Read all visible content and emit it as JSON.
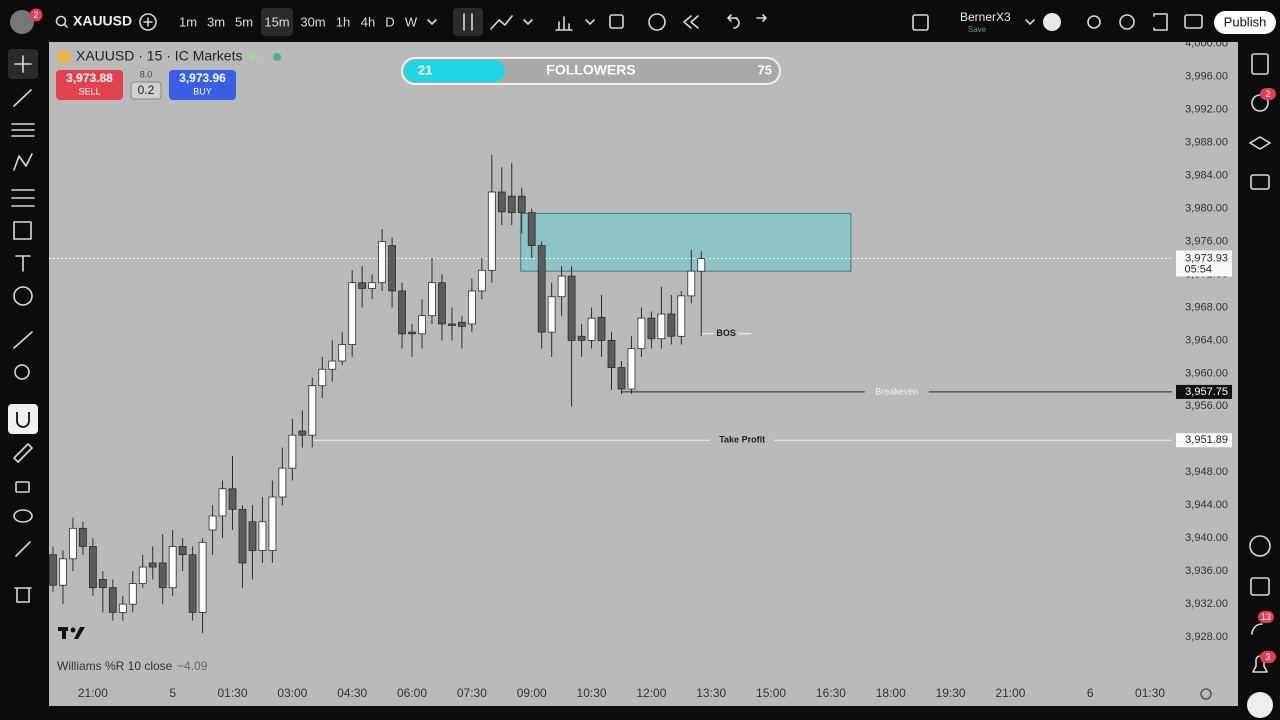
{
  "top_bar": {
    "avatar_badge": "2",
    "symbol": "XAUUSD",
    "timeframes": [
      "1m",
      "3m",
      "5m",
      "15m",
      "30m",
      "1h",
      "4h",
      "D",
      "W"
    ],
    "active_timeframe": "15m",
    "user": "BernerX3",
    "user_status": "Save",
    "publish": "Publish"
  },
  "symbol_info": {
    "title": "XAUUSD · 15 · IC Markets",
    "sell_price": "3,973.88",
    "sell_label": "SELL",
    "spread": "8.0",
    "quantity": "0.2",
    "buy_price": "3,973.96",
    "buy_label": "BUY"
  },
  "followers_widget": {
    "left": "21",
    "label": "FOLLOWERS",
    "right": "75"
  },
  "right_sidebar": {
    "badges": [
      "2",
      "13",
      "3"
    ]
  },
  "chart_data": {
    "type": "candlestick",
    "x": [
      -4,
      -3,
      -2,
      -1,
      0,
      1,
      2,
      3,
      4,
      5,
      6,
      7,
      8,
      9,
      10,
      11,
      12,
      13,
      14,
      15,
      16,
      17,
      18,
      19,
      20,
      21,
      22,
      23,
      24,
      25,
      26,
      27,
      28,
      29,
      30,
      31,
      32,
      33,
      34,
      35,
      36,
      37,
      38,
      39,
      40,
      41,
      42,
      43,
      44,
      45,
      46,
      47,
      48,
      49,
      50,
      51,
      52,
      53,
      54,
      55,
      56,
      57,
      58,
      59,
      60,
      61
    ],
    "open": [
      3938,
      3934.3,
      3937.5,
      3941.2,
      3939,
      3935,
      3934,
      3931,
      3932,
      3934.5,
      3937,
      3937,
      3934,
      3939,
      3938,
      3931,
      3941,
      3942.7,
      3946,
      3943.5,
      3942,
      3938.5,
      3938.5,
      3945,
      3948.5,
      3953,
      3952.5,
      3958.5,
      3960.5,
      3961.5,
      3963.5,
      3971,
      3970.3,
      3971,
      3975.5,
      3970,
      3965,
      3964.8,
      3967,
      3971,
      3966,
      3966.2,
      3966,
      3970,
      3972.5,
      3982,
      3981.5,
      3981.5,
      3979.5,
      3975.5,
      3965,
      3969.3,
      3971.8,
      3964.5,
      3964,
      3966.8,
      3964,
      3960.7,
      3958.1,
      3963,
      3966.7,
      3964.2,
      3967.2,
      3964.5,
      3969.4,
      3972.4
    ],
    "high": [
      3939,
      3938.5,
      3942.5,
      3942,
      3940,
      3936,
      3935,
      3933,
      3936,
      3938,
      3939,
      3940.5,
      3941,
      3940,
      3939,
      3940,
      3944,
      3947,
      3950,
      3944,
      3944,
      3945,
      3947,
      3951,
      3954.5,
      3955.5,
      3959.5,
      3962,
      3964,
      3965,
      3972.5,
      3973,
      3972,
      3977.5,
      3976.5,
      3971,
      3966,
      3969,
      3974,
      3972,
      3968,
      3967,
      3971.5,
      3974,
      3986.5,
      3985,
      3985.5,
      3982.5,
      3980,
      3976,
      3971,
      3973,
      3973,
      3966,
      3968,
      3969.5,
      3965,
      3961.5,
      3964.5,
      3968,
      3967.5,
      3970.5,
      3969.5,
      3970,
      3975,
      3974.8
    ],
    "low": [
      3933.5,
      3932,
      3936,
      3938,
      3933,
      3931,
      3930,
      3930,
      3931,
      3934,
      3935,
      3932,
      3933,
      3936,
      3930,
      3928.5,
      3938,
      3940,
      3941,
      3934,
      3935,
      3937,
      3937,
      3944,
      3947,
      3951,
      3951,
      3957,
      3959,
      3961,
      3962,
      3968,
      3969,
      3970,
      3968,
      3963,
      3962,
      3963,
      3966,
      3964,
      3964,
      3963,
      3965,
      3969,
      3971,
      3978,
      3978,
      3977,
      3974,
      3963,
      3962,
      3967,
      3956,
      3962,
      3963,
      3962,
      3958,
      3957.5,
      3957.5,
      3962,
      3963,
      3963,
      3963.5,
      3963.5,
      3968.5,
      3964.5
    ],
    "close": [
      3934.3,
      3937.5,
      3941.2,
      3939,
      3934,
      3934,
      3931,
      3932,
      3934.5,
      3936.5,
      3936.5,
      3934,
      3939,
      3938,
      3931,
      3939.5,
      3942.7,
      3946,
      3943.5,
      3937,
      3938.5,
      3942,
      3945,
      3948.5,
      3952.5,
      3952.5,
      3958.5,
      3960.5,
      3961.5,
      3963.5,
      3971,
      3970.3,
      3971,
      3976,
      3970,
      3964.8,
      3964.8,
      3967,
      3971,
      3966,
      3965.8,
      3965.7,
      3970,
      3972.5,
      3982,
      3979.6,
      3979.5,
      3979.5,
      3975.5,
      3965,
      3969.3,
      3971.8,
      3964,
      3964,
      3966.7,
      3964,
      3960.7,
      3958.1,
      3963,
      3966.7,
      3964.2,
      3967.2,
      3964.5,
      3969.4,
      3972.4,
      3973.93
    ],
    "up_color": "#ffffff",
    "down_color": "#5c5c5c",
    "ylim": [
      3922.8,
      4000.2
    ],
    "yticks": [
      {
        "value": 3928,
        "label": "3,928.00"
      },
      {
        "value": 3932,
        "label": "3,932.00"
      },
      {
        "value": 3936,
        "label": "3,936.00"
      },
      {
        "value": 3940,
        "label": "3,940.00"
      },
      {
        "value": 3944,
        "label": "3,944.00"
      },
      {
        "value": 3948,
        "label": "3,948.00"
      },
      {
        "value": 3952,
        "label": "3,952.00"
      },
      {
        "value": 3956,
        "label": "3,956.00"
      },
      {
        "value": 3960,
        "label": "3,960.00"
      },
      {
        "value": 3964,
        "label": "3,964.00"
      },
      {
        "value": 3968,
        "label": "3,968.00"
      },
      {
        "value": 3972,
        "label": "3,972.00"
      },
      {
        "value": 3976,
        "label": "3,976.00"
      },
      {
        "value": 3980,
        "label": "3,980.00"
      },
      {
        "value": 3984,
        "label": "3,984.00"
      },
      {
        "value": 3988,
        "label": "3,988.00"
      },
      {
        "value": 3992,
        "label": "3,992.00"
      },
      {
        "value": 3996,
        "label": "3,996.00"
      },
      {
        "value": 4000,
        "label": "4,000.00"
      }
    ],
    "xlim": [
      -4.4,
      108.2
    ],
    "xticks": [
      {
        "value": 0,
        "label": "21:00"
      },
      {
        "value": 8,
        "label": "5"
      },
      {
        "value": 14,
        "label": "01:30"
      },
      {
        "value": 20,
        "label": "03:00"
      },
      {
        "value": 26,
        "label": "04:30"
      },
      {
        "value": 32,
        "label": "06:00"
      },
      {
        "value": 38,
        "label": "07:30"
      },
      {
        "value": 44,
        "label": "09:00"
      },
      {
        "value": 50,
        "label": "10:30"
      },
      {
        "value": 56,
        "label": "12:00"
      },
      {
        "value": 62,
        "label": "13:30"
      },
      {
        "value": 68,
        "label": "15:00"
      },
      {
        "value": 74,
        "label": "16:30"
      },
      {
        "value": 80,
        "label": "18:00"
      },
      {
        "value": 86,
        "label": "19:30"
      },
      {
        "value": 92,
        "label": "21:00"
      },
      {
        "value": 100,
        "label": "6"
      },
      {
        "value": 106,
        "label": "01:30"
      }
    ],
    "grid": false,
    "zone": {
      "x_start": 42.9,
      "x_end": 76,
      "top": 3979.4,
      "bottom": 3972.4,
      "color": "#8cc4c8"
    },
    "current_price": {
      "value": 3973.93,
      "label": "3,973.93",
      "countdown": "05:54"
    },
    "levels": [
      {
        "name": "Breakeven",
        "value": 3957.75,
        "value_label": "3,957.75",
        "x_start": 53
      },
      {
        "name": "Take Profit",
        "value": 3951.89,
        "value_label": "3,951.89",
        "x_start": 22
      }
    ],
    "bos": {
      "label": "BOS",
      "value": 3964.8,
      "x_start": 61,
      "x_end": 66
    },
    "indicator": {
      "name": "Williams %R 10 close",
      "value_label": "−4.09"
    }
  }
}
